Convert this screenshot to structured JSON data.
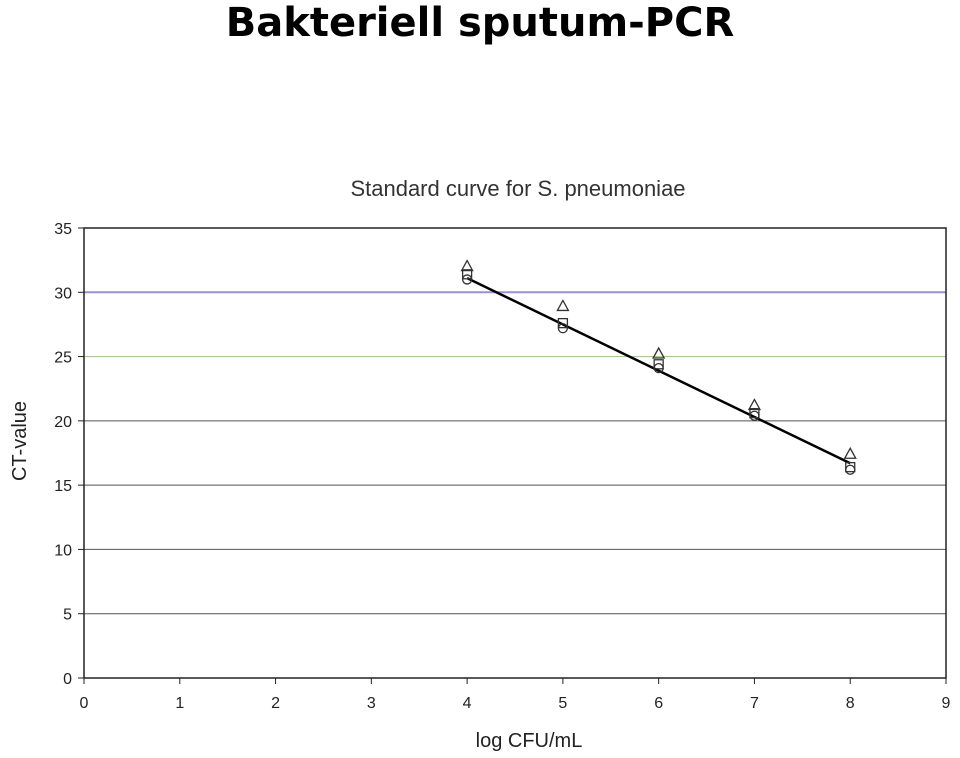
{
  "slide": {
    "title": "Bakteriell sputum-PCR"
  },
  "chart_data": {
    "type": "scatter",
    "title": "Standard curve for S. pneumoniae",
    "xlabel": "log CFU/mL",
    "ylabel": "CT-value",
    "xlim": [
      0,
      9
    ],
    "ylim": [
      0,
      35
    ],
    "xticks": [
      0,
      1,
      2,
      3,
      4,
      5,
      6,
      7,
      8,
      9
    ],
    "yticks": [
      0,
      5,
      10,
      15,
      20,
      25,
      30,
      35
    ],
    "grid": "horizontal",
    "legend": "none",
    "series": [
      {
        "marker": "triangle",
        "x": [
          4,
          5,
          6,
          7,
          8
        ],
        "y": [
          32.0,
          28.9,
          25.2,
          21.2,
          17.4
        ]
      },
      {
        "marker": "square",
        "x": [
          4,
          5,
          6,
          7,
          8
        ],
        "y": [
          31.4,
          27.6,
          24.4,
          20.6,
          16.4
        ]
      },
      {
        "marker": "circle",
        "x": [
          4,
          5,
          6,
          7,
          8
        ],
        "y": [
          31.0,
          27.2,
          24.1,
          20.4,
          16.2
        ]
      }
    ],
    "trendline": {
      "x": [
        4,
        8
      ],
      "y": [
        31.1,
        16.7
      ]
    },
    "colors": {
      "grid": "#555555",
      "grid_highlight_30": "#9a8fd6",
      "grid_highlight_25": "#9bbf8c",
      "marker": "#333333",
      "line": "#000000"
    }
  }
}
